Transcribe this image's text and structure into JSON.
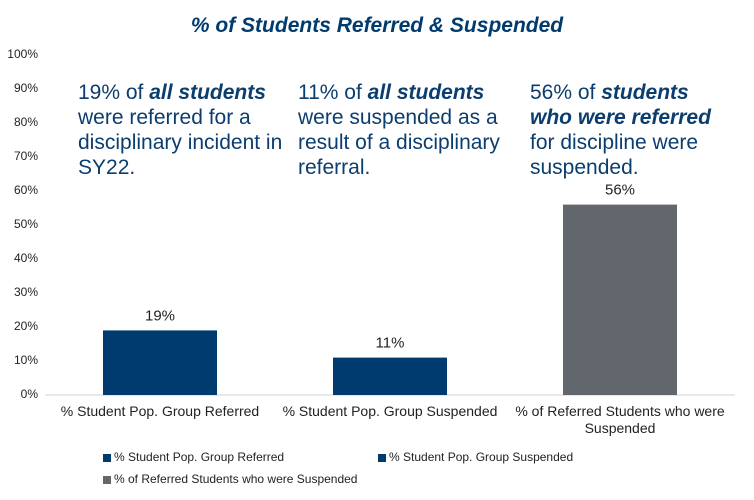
{
  "chart_data": {
    "type": "bar",
    "title": "% of Students Referred & Suspended",
    "categories": [
      "% Student Pop. Group Referred",
      "% Student Pop. Group Suspended",
      "% of Referred Students who were Suspended"
    ],
    "values": [
      19,
      11,
      56
    ],
    "value_labels": [
      "19%",
      "11%",
      "56%"
    ],
    "colors": [
      "#003b6f",
      "#003b6f",
      "#62666d"
    ],
    "ylim": [
      0,
      100
    ],
    "yticks": [
      {
        "value": 0,
        "label": "0%"
      },
      {
        "value": 10,
        "label": "10%"
      },
      {
        "value": 20,
        "label": "20%"
      },
      {
        "value": 30,
        "label": "30%"
      },
      {
        "value": 40,
        "label": "40%"
      },
      {
        "value": 50,
        "label": "50%"
      },
      {
        "value": 60,
        "label": "60%"
      },
      {
        "value": 70,
        "label": "70%"
      },
      {
        "value": 80,
        "label": "80%"
      },
      {
        "value": 90,
        "label": "90%"
      },
      {
        "value": 100,
        "label": "100%"
      }
    ],
    "grid": false,
    "legend": "bottom",
    "annotations": [
      {
        "segments": [
          {
            "text": "19% of "
          },
          {
            "text": "all students",
            "bold": true
          },
          {
            "text": " were referred for a disciplinary incident in SY22."
          }
        ]
      },
      {
        "segments": [
          {
            "text": "11% of "
          },
          {
            "text": "all students",
            "bold": true
          },
          {
            "text": " were suspended as a result of a disciplinary referral."
          }
        ]
      },
      {
        "segments": [
          {
            "text": "56% of "
          },
          {
            "text": "students who were referred",
            "bold": true
          },
          {
            "text": " for discipline were suspended."
          }
        ]
      }
    ]
  }
}
